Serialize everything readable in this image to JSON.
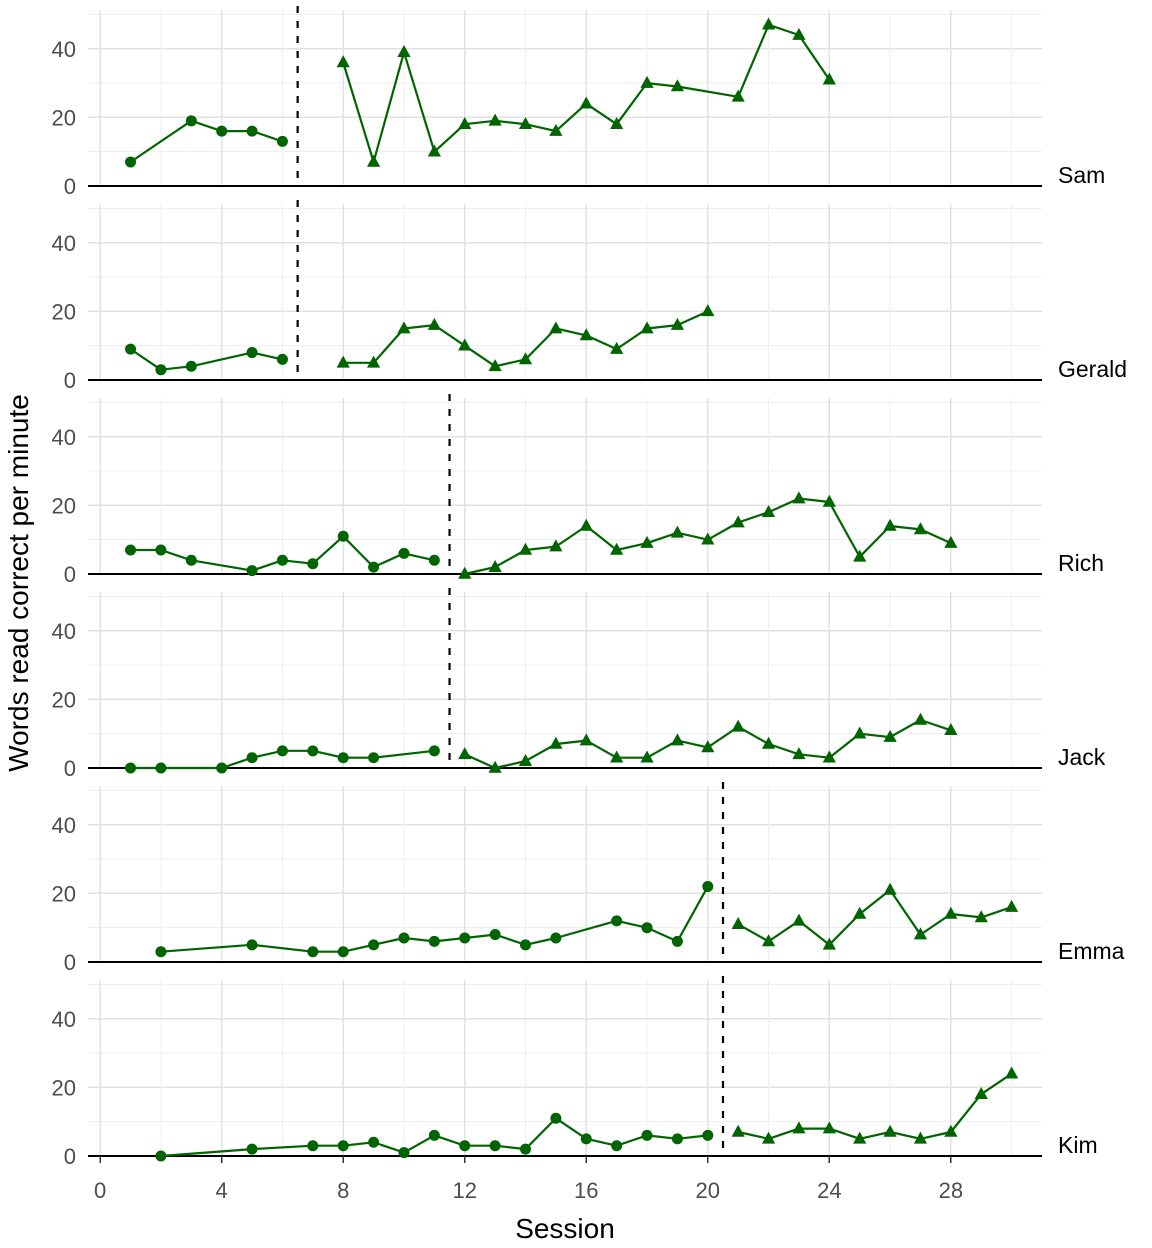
{
  "chart_data": {
    "type": "line",
    "title": "",
    "xlabel": "Session",
    "ylabel": "Words read correct per minute",
    "x_ticks": [
      0,
      4,
      8,
      12,
      16,
      20,
      24,
      28
    ],
    "x_minor_gridlines": [
      2,
      6,
      10,
      14,
      18,
      22,
      26,
      30
    ],
    "y_ticks": [
      0,
      20,
      40
    ],
    "y_minor_gridlines": [
      10,
      30,
      50
    ],
    "xlim": [
      -0.4,
      31.0
    ],
    "ylim": [
      0,
      51.3
    ],
    "grid": "on",
    "legend": "none",
    "colors": {
      "series": "#006400",
      "axis_text": "#4d4d4d",
      "axis_title": "#000000",
      "facet_label": "#000000",
      "gridline_major": "#e2e2e2",
      "gridline_minor": "#efefef",
      "axis_line": "#000000",
      "phase_line": "#000000",
      "background": "#ffffff"
    },
    "panels": [
      {
        "name": "Sam",
        "phase_change_x": 6.5,
        "baseline": {
          "marker": "circle",
          "x": [
            1,
            3,
            4,
            5,
            6
          ],
          "y": [
            7,
            19,
            16,
            16,
            13
          ]
        },
        "intervention": {
          "marker": "triangle",
          "x": [
            8,
            9,
            10,
            11,
            12,
            13,
            14,
            15,
            16,
            17,
            18,
            19,
            21,
            22,
            23,
            24
          ],
          "y": [
            36,
            7,
            39,
            10,
            18,
            19,
            18,
            16,
            24,
            18,
            30,
            29,
            26,
            47,
            44,
            31
          ]
        }
      },
      {
        "name": "Gerald",
        "phase_change_x": 6.5,
        "baseline": {
          "marker": "circle",
          "x": [
            1,
            2,
            3,
            5,
            6
          ],
          "y": [
            9,
            3,
            4,
            8,
            6
          ]
        },
        "intervention": {
          "marker": "triangle",
          "x": [
            8,
            9,
            10,
            11,
            12,
            13,
            14,
            15,
            16,
            17,
            18,
            19,
            20
          ],
          "y": [
            5,
            5,
            15,
            16,
            10,
            4,
            6,
            15,
            13,
            9,
            15,
            16,
            20
          ]
        }
      },
      {
        "name": "Rich",
        "phase_change_x": 11.5,
        "baseline": {
          "marker": "circle",
          "x": [
            1,
            2,
            3,
            5,
            6,
            7,
            8,
            9,
            10,
            11
          ],
          "y": [
            7,
            7,
            4,
            1,
            4,
            3,
            11,
            2,
            6,
            4
          ]
        },
        "intervention": {
          "marker": "triangle",
          "x": [
            12,
            13,
            14,
            15,
            16,
            17,
            18,
            19,
            20,
            21,
            22,
            23,
            24,
            25,
            26,
            27,
            28
          ],
          "y": [
            0,
            2,
            7,
            8,
            14,
            7,
            9,
            12,
            10,
            15,
            18,
            22,
            21,
            5,
            14,
            13,
            9
          ]
        }
      },
      {
        "name": "Jack",
        "phase_change_x": 11.5,
        "baseline": {
          "marker": "circle",
          "x": [
            1,
            2,
            4,
            5,
            6,
            7,
            8,
            9,
            11
          ],
          "y": [
            0,
            0,
            0,
            3,
            5,
            5,
            3,
            3,
            5
          ]
        },
        "intervention": {
          "marker": "triangle",
          "x": [
            12,
            13,
            14,
            15,
            16,
            17,
            18,
            19,
            20,
            21,
            22,
            23,
            24,
            25,
            26,
            27,
            28
          ],
          "y": [
            4,
            0,
            2,
            7,
            8,
            3,
            3,
            8,
            6,
            12,
            7,
            4,
            3,
            10,
            9,
            14,
            11
          ]
        }
      },
      {
        "name": "Emma",
        "phase_change_x": 20.5,
        "baseline": {
          "marker": "circle",
          "x": [
            2,
            5,
            7,
            8,
            9,
            10,
            11,
            12,
            13,
            14,
            15,
            17,
            18,
            19,
            20
          ],
          "y": [
            3,
            5,
            3,
            3,
            5,
            7,
            6,
            7,
            8,
            5,
            7,
            12,
            10,
            6,
            22
          ]
        },
        "intervention": {
          "marker": "triangle",
          "x": [
            21,
            22,
            23,
            24,
            25,
            26,
            27,
            28,
            29,
            30
          ],
          "y": [
            11,
            6,
            12,
            5,
            14,
            21,
            8,
            14,
            13,
            16
          ]
        }
      },
      {
        "name": "Kim",
        "phase_change_x": 20.5,
        "baseline": {
          "marker": "circle",
          "x": [
            2,
            5,
            7,
            8,
            9,
            10,
            11,
            12,
            13,
            14,
            15,
            16,
            17,
            18,
            19,
            20
          ],
          "y": [
            0,
            2,
            3,
            3,
            4,
            1,
            6,
            3,
            3,
            2,
            11,
            5,
            3,
            6,
            5,
            6
          ]
        },
        "intervention": {
          "marker": "triangle",
          "x": [
            21,
            22,
            23,
            24,
            25,
            26,
            27,
            28,
            29,
            30
          ],
          "y": [
            7,
            5,
            8,
            8,
            5,
            7,
            5,
            7,
            18,
            24
          ]
        }
      }
    ]
  }
}
